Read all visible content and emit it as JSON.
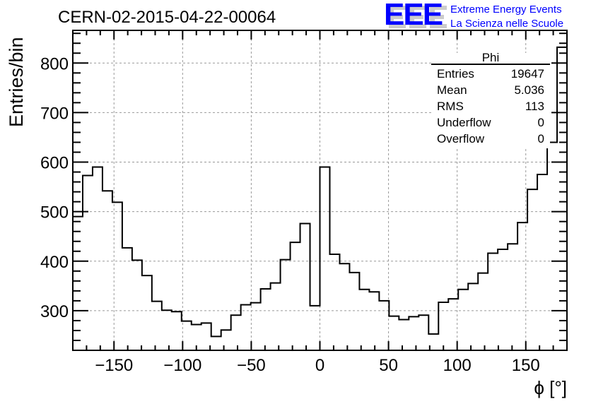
{
  "title": "CERN-02-2015-04-22-00064",
  "logo": {
    "text": "EEE",
    "line1": "Extreme Energy Events",
    "line2": "La Scienza nelle Scuole",
    "color": "#0000ff"
  },
  "stats": {
    "name": "Phi",
    "rows": [
      {
        "label": "Entries",
        "value": "19647"
      },
      {
        "label": "Mean",
        "value": "5.036"
      },
      {
        "label": "RMS",
        "value": "113"
      },
      {
        "label": "Underflow",
        "value": "0"
      },
      {
        "label": "Overflow",
        "value": "0"
      }
    ]
  },
  "chart_data": {
    "type": "bar",
    "style": "step-histogram",
    "title": "CERN-02-2015-04-22-00064",
    "xlabel": "ϕ [°]",
    "ylabel": "Entries/bin",
    "xlim": [
      -180,
      180
    ],
    "ylim": [
      220,
      866
    ],
    "bin_width": 7.2,
    "grid": true,
    "xticks": [
      -150,
      -100,
      -50,
      0,
      50,
      100,
      150
    ],
    "xtick_labels": [
      "−150",
      "−100",
      "−50",
      "0",
      "50",
      "100",
      "150"
    ],
    "yticks": [
      300,
      400,
      500,
      600,
      700,
      800
    ],
    "ytick_labels": [
      "300",
      "400",
      "500",
      "600",
      "700",
      "800"
    ],
    "values": [
      490,
      573,
      590,
      542,
      519,
      427,
      402,
      371,
      319,
      301,
      298,
      279,
      272,
      275,
      248,
      261,
      291,
      312,
      316,
      344,
      356,
      403,
      438,
      476,
      310,
      590,
      414,
      395,
      377,
      343,
      338,
      320,
      289,
      282,
      288,
      291,
      253,
      317,
      324,
      343,
      355,
      376,
      416,
      424,
      435,
      478,
      545,
      575,
      640,
      832
    ]
  }
}
